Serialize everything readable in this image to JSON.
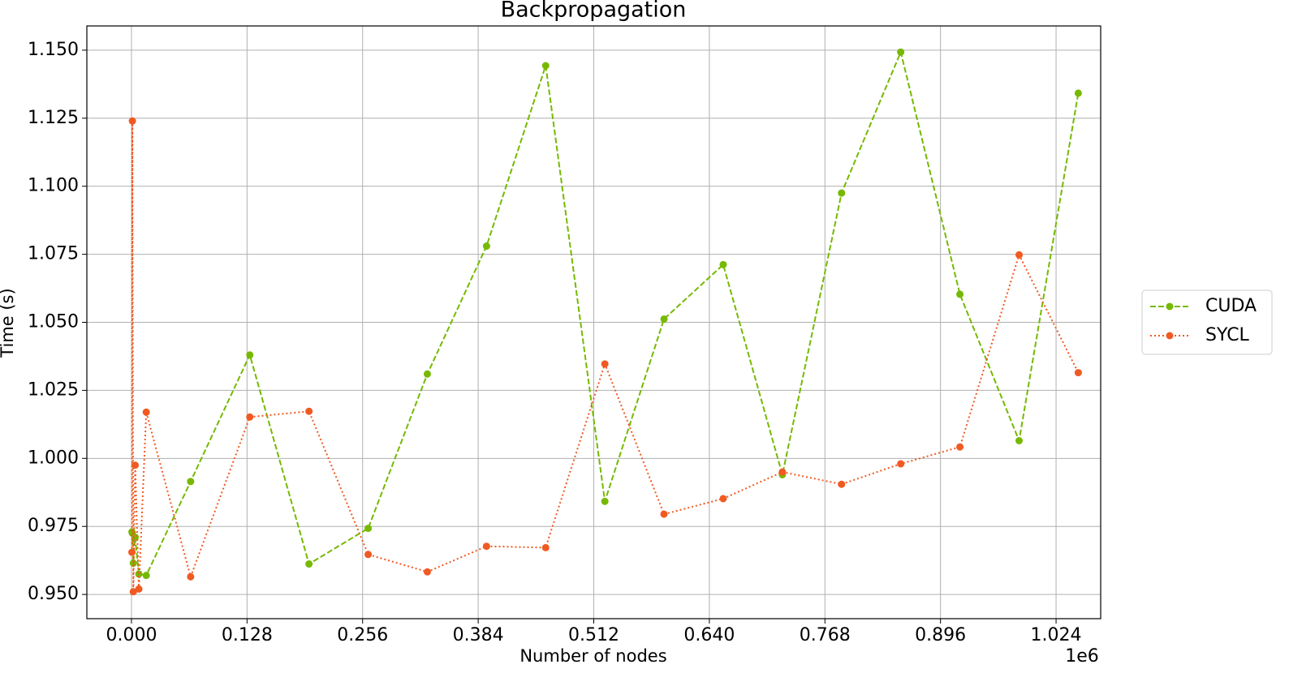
{
  "chart_data": {
    "type": "line",
    "title": "Backpropagation",
    "x_label": "Number of nodes",
    "y_label": "Time (s)",
    "x_offset_text": "1e6",
    "x": [
      512,
      1024,
      2048,
      4096,
      8192,
      16384,
      65536,
      131072,
      196608,
      262144,
      327680,
      393216,
      458752,
      524288,
      589824,
      655360,
      720896,
      786432,
      851968,
      917504,
      983040,
      1048576
    ],
    "series": [
      {
        "name": "CUDA",
        "color": "#76b900",
        "linestyle": "dashed",
        "values": [
          0.973,
          0.9725,
          0.9615,
          0.971,
          0.9575,
          0.957,
          0.9915,
          1.038,
          0.9612,
          0.9743,
          1.031,
          1.078,
          1.1443,
          0.9842,
          1.0512,
          1.0712,
          0.994,
          1.0975,
          1.1493,
          1.0603,
          1.0065,
          1.1342
        ]
      },
      {
        "name": "SYCL",
        "color": "#f05a22",
        "linestyle": "dotted",
        "values": [
          0.9655,
          1.124,
          0.951,
          0.9975,
          0.952,
          1.017,
          0.9565,
          1.0152,
          1.0173,
          0.9647,
          0.9583,
          0.9677,
          0.9672,
          1.0347,
          0.9795,
          0.9852,
          0.995,
          0.9905,
          0.998,
          1.0042,
          1.0748,
          1.0315
        ]
      }
    ],
    "xlim": [
      -49400,
      1073400
    ],
    "ylim": [
      0.9411,
      1.1589
    ],
    "xticks": [
      {
        "value": 0,
        "label": "0.000"
      },
      {
        "value": 128000,
        "label": "0.128"
      },
      {
        "value": 256000,
        "label": "0.256"
      },
      {
        "value": 384000,
        "label": "0.384"
      },
      {
        "value": 512000,
        "label": "0.512"
      },
      {
        "value": 640000,
        "label": "0.640"
      },
      {
        "value": 768000,
        "label": "0.768"
      },
      {
        "value": 896000,
        "label": "0.896"
      },
      {
        "value": 1024000,
        "label": "1.024"
      }
    ],
    "yticks": [
      {
        "value": 0.95,
        "label": "0.950"
      },
      {
        "value": 0.975,
        "label": "0.975"
      },
      {
        "value": 1.0,
        "label": "1.000"
      },
      {
        "value": 1.025,
        "label": "1.025"
      },
      {
        "value": 1.05,
        "label": "1.050"
      },
      {
        "value": 1.075,
        "label": "1.075"
      },
      {
        "value": 1.1,
        "label": "1.100"
      },
      {
        "value": 1.125,
        "label": "1.125"
      },
      {
        "value": 1.15,
        "label": "1.150"
      }
    ],
    "grid": true,
    "legend": "outside right"
  }
}
